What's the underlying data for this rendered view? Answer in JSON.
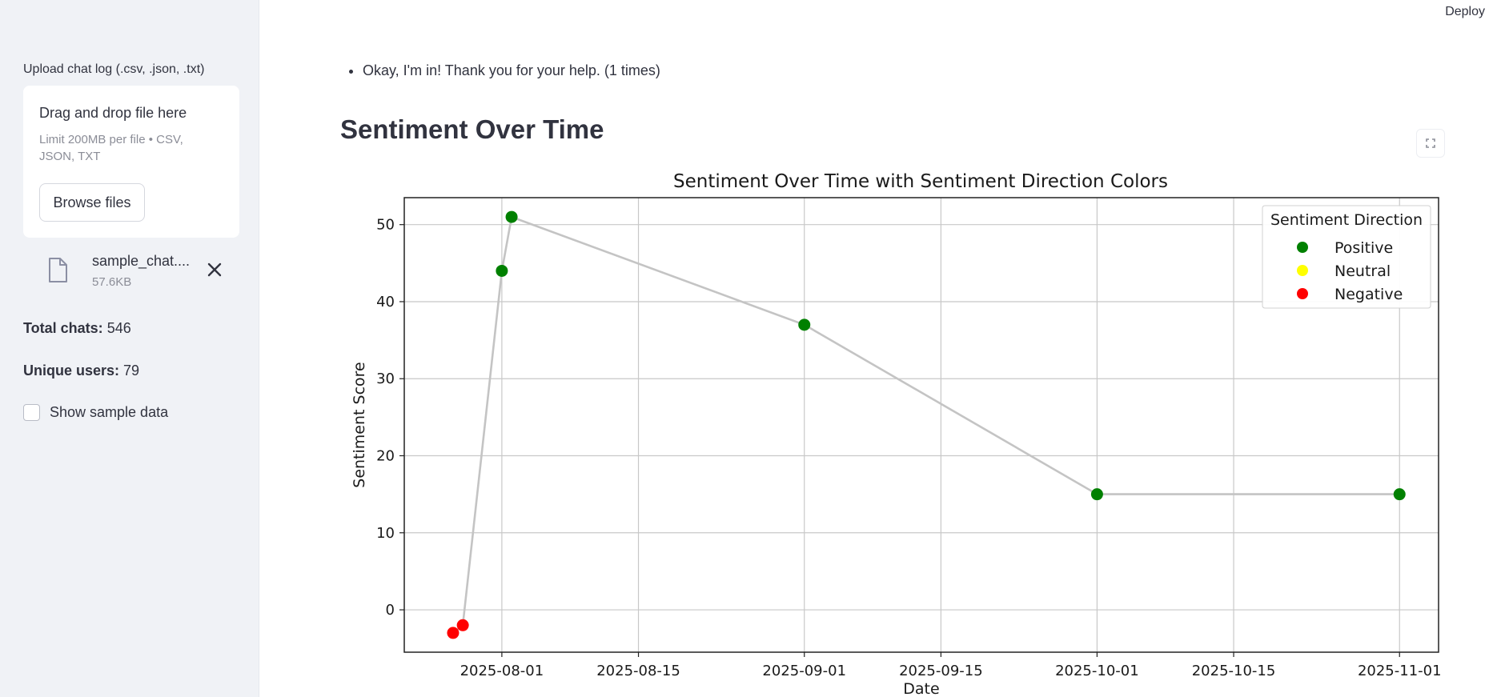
{
  "header": {
    "deploy_label": "Deploy"
  },
  "sidebar": {
    "upload_label": "Upload chat log (.csv, .json, .txt)",
    "dropzone": {
      "title": "Drag and drop file here",
      "limit": "Limit 200MB per file • CSV, JSON, TXT",
      "browse_label": "Browse files"
    },
    "file": {
      "name": "sample_chat....",
      "size": "57.6KB"
    },
    "stats": {
      "total_label": "Total chats:",
      "total_value": "546",
      "users_label": "Unique users:",
      "users_value": "79"
    },
    "show_sample_label": "Show sample data"
  },
  "main": {
    "bullets": [
      "Okay, I'm in! Thank you for your help. (1 times)"
    ],
    "heading": "Sentiment Over Time"
  },
  "chart_data": {
    "type": "line",
    "title": "Sentiment Over Time with Sentiment Direction Colors",
    "xlabel": "Date",
    "ylabel": "Sentiment Score",
    "xlim": [
      "2025-07-22",
      "2025-11-05"
    ],
    "ylim": [
      -5.5,
      53.5
    ],
    "x_ticks": [
      "2025-08-01",
      "2025-08-15",
      "2025-09-01",
      "2025-09-15",
      "2025-10-01",
      "2025-10-15",
      "2025-11-01"
    ],
    "y_ticks": [
      0,
      10,
      20,
      30,
      40,
      50
    ],
    "grid": true,
    "legend": {
      "title": "Sentiment Direction",
      "placement": "top-right",
      "entries": [
        {
          "name": "Positive",
          "color": "#008000"
        },
        {
          "name": "Neutral",
          "color": "#ffff00"
        },
        {
          "name": "Negative",
          "color": "#ff0000"
        }
      ]
    },
    "line_color": "#c4c4c4",
    "points": [
      {
        "x": "2025-07-27",
        "y": -3,
        "direction": "Negative"
      },
      {
        "x": "2025-07-28",
        "y": -2,
        "direction": "Negative"
      },
      {
        "x": "2025-08-01",
        "y": 44,
        "direction": "Positive"
      },
      {
        "x": "2025-08-02",
        "y": 51,
        "direction": "Positive"
      },
      {
        "x": "2025-09-01",
        "y": 37,
        "direction": "Positive"
      },
      {
        "x": "2025-10-01",
        "y": 15,
        "direction": "Positive"
      },
      {
        "x": "2025-11-01",
        "y": 15,
        "direction": "Positive"
      }
    ]
  }
}
